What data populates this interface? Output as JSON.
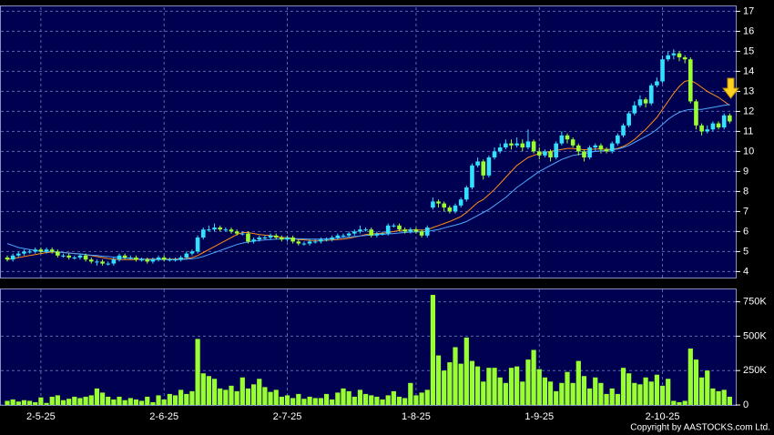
{
  "chart_data": [
    {
      "type": "candlestick",
      "x": [
        null,
        null,
        null,
        null,
        null,
        null,
        "2-5-25",
        null,
        null,
        null,
        null,
        null,
        null,
        null,
        null,
        null,
        null,
        null,
        null,
        null,
        null,
        null,
        null,
        null,
        null,
        null,
        null,
        null,
        "2-6-25",
        null,
        null,
        null,
        null,
        null,
        null,
        null,
        null,
        null,
        null,
        null,
        null,
        null,
        null,
        null,
        null,
        null,
        null,
        null,
        null,
        null,
        "2-7-25",
        null,
        null,
        null,
        null,
        null,
        null,
        null,
        null,
        null,
        null,
        null,
        null,
        null,
        null,
        null,
        null,
        null,
        null,
        null,
        null,
        null,
        null,
        "1-8-25",
        null,
        null,
        null,
        null,
        null,
        null,
        null,
        null,
        null,
        null,
        null,
        null,
        null,
        null,
        null,
        null,
        null,
        null,
        null,
        null,
        null,
        "1-9-25",
        null,
        null,
        null,
        null,
        null,
        null,
        null,
        null,
        null,
        null,
        null,
        null,
        null,
        null,
        null,
        null,
        null,
        null,
        null,
        null,
        null,
        "2-10-25",
        null,
        null,
        null,
        null,
        null,
        null,
        null,
        null,
        null,
        null,
        null,
        null
      ],
      "open": [
        4.7,
        4.6,
        4.8,
        4.9,
        5.0,
        5.0,
        5.1,
        5.0,
        5.1,
        5.0,
        4.8,
        4.8,
        4.7,
        4.7,
        4.8,
        4.6,
        4.5,
        4.5,
        4.4,
        4.4,
        4.6,
        4.8,
        4.7,
        4.7,
        4.6,
        4.6,
        4.5,
        4.6,
        4.7,
        4.6,
        4.6,
        4.6,
        4.7,
        4.9,
        5.0,
        5.7,
        6.1,
        6.1,
        6.2,
        6.1,
        6.1,
        6.0,
        5.9,
        5.9,
        5.5,
        5.6,
        5.7,
        5.7,
        5.8,
        5.7,
        5.6,
        5.7,
        5.5,
        5.4,
        5.4,
        5.5,
        5.5,
        5.6,
        5.6,
        5.7,
        5.8,
        5.8,
        5.9,
        6.0,
        6.1,
        6.1,
        5.8,
        5.9,
        5.9,
        6.3,
        6.3,
        6.1,
        6.0,
        6.1,
        6.0,
        5.8,
        7.2,
        7.5,
        7.4,
        7.2,
        7.0,
        7.3,
        7.6,
        8.2,
        9.3,
        9.5,
        8.8,
        9.7,
        10.0,
        10.2,
        10.4,
        10.3,
        10.4,
        10.2,
        10.5,
        10.0,
        9.8,
        10.0,
        9.7,
        10.4,
        10.8,
        10.6,
        10.3,
        10.0,
        9.7,
        10.2,
        10.3,
        10.1,
        10.0,
        10.4,
        10.8,
        11.3,
        11.9,
        12.3,
        12.6,
        12.4,
        13.3,
        13.5,
        14.6,
        14.8,
        14.9,
        14.7,
        14.6,
        12.5,
        11.3,
        11.0,
        11.1,
        11.4,
        11.2,
        11.8
      ],
      "high": [
        4.8,
        4.9,
        5.0,
        5.1,
        5.1,
        5.2,
        5.2,
        5.2,
        5.2,
        5.1,
        4.9,
        4.9,
        4.8,
        4.9,
        4.9,
        4.7,
        4.6,
        4.6,
        4.5,
        4.7,
        4.9,
        4.9,
        4.8,
        4.8,
        4.7,
        4.7,
        4.7,
        4.8,
        4.8,
        4.7,
        4.7,
        4.8,
        5.0,
        5.1,
        5.8,
        6.2,
        6.3,
        6.4,
        6.3,
        6.2,
        6.2,
        6.1,
        6.0,
        6.0,
        5.7,
        5.8,
        5.8,
        5.9,
        5.9,
        5.8,
        5.8,
        5.8,
        5.6,
        5.5,
        5.6,
        5.6,
        5.7,
        5.7,
        5.8,
        5.9,
        5.9,
        6.0,
        6.1,
        6.3,
        6.2,
        6.2,
        6.0,
        6.0,
        6.4,
        6.4,
        6.4,
        6.2,
        6.2,
        6.2,
        6.1,
        6.3,
        7.7,
        7.6,
        7.5,
        7.3,
        7.4,
        7.7,
        8.3,
        9.4,
        9.7,
        9.6,
        9.8,
        10.2,
        10.4,
        10.6,
        10.6,
        10.7,
        10.6,
        11.1,
        10.6,
        10.2,
        10.1,
        10.1,
        10.5,
        11.0,
        10.9,
        10.7,
        10.4,
        10.1,
        10.3,
        10.4,
        10.4,
        10.2,
        10.5,
        10.9,
        11.4,
        12.0,
        12.5,
        12.8,
        12.7,
        13.4,
        13.7,
        14.8,
        15.0,
        15.1,
        15.0,
        14.8,
        14.7,
        12.6,
        11.4,
        11.3,
        11.5,
        11.5,
        11.9,
        11.9
      ],
      "low": [
        4.5,
        4.5,
        4.7,
        4.8,
        4.9,
        4.9,
        4.9,
        4.9,
        4.9,
        4.7,
        4.7,
        4.6,
        4.6,
        4.6,
        4.5,
        4.4,
        4.3,
        4.3,
        4.3,
        4.3,
        4.5,
        4.6,
        4.6,
        4.5,
        4.5,
        4.4,
        4.4,
        4.5,
        4.5,
        4.5,
        4.5,
        4.5,
        4.6,
        4.8,
        4.9,
        5.6,
        6.0,
        6.0,
        6.0,
        6.0,
        5.9,
        5.8,
        5.8,
        5.4,
        5.4,
        5.5,
        5.6,
        5.6,
        5.6,
        5.5,
        5.5,
        5.4,
        5.3,
        5.3,
        5.3,
        5.4,
        5.4,
        5.5,
        5.5,
        5.6,
        5.7,
        5.7,
        5.8,
        5.9,
        6.0,
        5.7,
        5.7,
        5.8,
        5.8,
        6.2,
        6.0,
        5.9,
        5.9,
        5.9,
        5.7,
        5.7,
        7.1,
        7.2,
        7.0,
        6.9,
        6.9,
        7.2,
        7.5,
        8.1,
        9.2,
        8.6,
        8.7,
        9.6,
        9.9,
        10.1,
        10.1,
        10.2,
        10.0,
        10.1,
        9.9,
        9.6,
        9.7,
        9.5,
        9.6,
        10.3,
        10.4,
        10.2,
        9.8,
        9.5,
        9.6,
        10.0,
        9.9,
        9.9,
        9.9,
        10.3,
        10.7,
        11.2,
        11.8,
        12.2,
        12.2,
        12.3,
        13.2,
        13.4,
        14.5,
        14.6,
        14.5,
        14.4,
        12.4,
        11.1,
        10.8,
        10.9,
        11.0,
        11.1,
        11.1,
        11.4
      ],
      "close": [
        4.6,
        4.8,
        4.9,
        5.0,
        5.0,
        5.1,
        5.0,
        5.1,
        5.0,
        4.8,
        4.8,
        4.7,
        4.7,
        4.8,
        4.6,
        4.5,
        4.5,
        4.4,
        4.4,
        4.6,
        4.8,
        4.7,
        4.7,
        4.6,
        4.6,
        4.5,
        4.6,
        4.7,
        4.6,
        4.6,
        4.6,
        4.7,
        4.9,
        5.0,
        5.7,
        6.1,
        6.1,
        6.2,
        6.1,
        6.1,
        6.0,
        5.9,
        5.9,
        5.5,
        5.6,
        5.7,
        5.7,
        5.8,
        5.7,
        5.6,
        5.7,
        5.5,
        5.4,
        5.4,
        5.5,
        5.5,
        5.6,
        5.6,
        5.7,
        5.8,
        5.8,
        5.9,
        6.0,
        6.1,
        6.1,
        5.8,
        5.9,
        5.9,
        6.3,
        6.3,
        6.1,
        6.0,
        6.1,
        6.0,
        5.8,
        6.2,
        7.5,
        7.4,
        7.2,
        7.0,
        7.3,
        7.6,
        8.2,
        9.3,
        9.5,
        8.8,
        9.7,
        10.0,
        10.2,
        10.4,
        10.3,
        10.4,
        10.2,
        10.5,
        10.0,
        9.8,
        10.0,
        9.7,
        10.4,
        10.8,
        10.6,
        10.3,
        10.0,
        9.7,
        10.2,
        10.3,
        10.1,
        10.0,
        10.4,
        10.8,
        11.3,
        11.9,
        12.3,
        12.6,
        12.4,
        13.3,
        13.5,
        14.6,
        14.8,
        14.9,
        14.7,
        14.6,
        12.5,
        11.3,
        11.0,
        11.1,
        11.4,
        11.2,
        11.8,
        11.5
      ],
      "up_color": "#33e0ff",
      "down_color": "#99ff33",
      "overlays": [
        {
          "color": "#ff8c1a",
          "values": [
            4.6,
            4.65,
            4.7,
            4.75,
            4.8,
            4.85,
            4.9,
            4.95,
            4.97,
            4.97,
            4.95,
            4.93,
            4.9,
            4.88,
            4.84,
            4.8,
            4.75,
            4.7,
            4.65,
            4.62,
            4.6,
            4.6,
            4.6,
            4.6,
            4.62,
            4.62,
            4.62,
            4.62,
            4.62,
            4.62,
            4.62,
            4.63,
            4.65,
            4.7,
            4.8,
            4.95,
            5.1,
            5.25,
            5.4,
            5.55,
            5.7,
            5.85,
            5.95,
            5.95,
            5.9,
            5.85,
            5.82,
            5.8,
            5.75,
            5.7,
            5.7,
            5.65,
            5.6,
            5.58,
            5.56,
            5.55,
            5.55,
            5.56,
            5.58,
            5.6,
            5.62,
            5.66,
            5.72,
            5.78,
            5.85,
            5.88,
            5.9,
            5.92,
            5.95,
            6.0,
            6.05,
            6.07,
            6.08,
            6.08,
            6.07,
            6.08,
            6.2,
            6.3,
            6.4,
            6.5,
            6.62,
            6.75,
            6.95,
            7.2,
            7.45,
            7.6,
            7.85,
            8.1,
            8.4,
            8.7,
            9.0,
            9.3,
            9.5,
            9.7,
            9.8,
            9.9,
            9.95,
            10.0,
            10.05,
            10.1,
            10.15,
            10.15,
            10.12,
            10.08,
            10.1,
            10.12,
            10.12,
            10.1,
            10.12,
            10.15,
            10.25,
            10.4,
            10.6,
            10.85,
            11.1,
            11.4,
            11.7,
            12.1,
            12.5,
            12.9,
            13.25,
            13.5,
            13.55,
            13.4,
            13.2,
            13.0,
            12.85,
            12.7,
            12.5,
            12.3
          ]
        },
        {
          "color": "#4da6ff",
          "values": [
            5.4,
            5.3,
            5.2,
            5.15,
            5.1,
            5.05,
            5.0,
            5.0,
            5.0,
            4.98,
            4.95,
            4.92,
            4.9,
            4.88,
            4.85,
            4.82,
            4.8,
            4.77,
            4.75,
            4.72,
            4.7,
            4.68,
            4.66,
            4.64,
            4.62,
            4.6,
            4.6,
            4.6,
            4.6,
            4.6,
            4.6,
            4.6,
            4.62,
            4.64,
            4.68,
            4.75,
            4.85,
            4.95,
            5.05,
            5.15,
            5.25,
            5.35,
            5.42,
            5.48,
            5.52,
            5.55,
            5.58,
            5.6,
            5.62,
            5.63,
            5.64,
            5.64,
            5.64,
            5.63,
            5.62,
            5.62,
            5.62,
            5.63,
            5.65,
            5.67,
            5.7,
            5.72,
            5.75,
            5.78,
            5.8,
            5.82,
            5.84,
            5.86,
            5.88,
            5.9,
            5.93,
            5.95,
            5.97,
            5.98,
            5.99,
            6.0,
            6.05,
            6.1,
            6.18,
            6.25,
            6.32,
            6.4,
            6.5,
            6.65,
            6.8,
            6.95,
            7.1,
            7.3,
            7.5,
            7.7,
            7.95,
            8.2,
            8.4,
            8.6,
            8.8,
            9.0,
            9.15,
            9.3,
            9.45,
            9.6,
            9.7,
            9.8,
            9.85,
            9.9,
            9.95,
            10.0,
            10.03,
            10.05,
            10.08,
            10.12,
            10.2,
            10.3,
            10.45,
            10.6,
            10.75,
            10.9,
            11.1,
            11.35,
            11.6,
            11.8,
            11.95,
            12.05,
            12.1,
            12.1,
            12.1,
            12.15,
            12.2,
            12.25,
            12.3,
            12.35
          ]
        }
      ],
      "ylim": [
        3.7,
        17.2
      ],
      "yticks": [
        4,
        5,
        6,
        7,
        8,
        9,
        10,
        11,
        12,
        13,
        14,
        15,
        16,
        17
      ],
      "grid": true
    },
    {
      "type": "bar",
      "values": [
        30000,
        40000,
        25000,
        35000,
        30000,
        20000,
        55000,
        15000,
        60000,
        70000,
        35000,
        45000,
        60000,
        50000,
        60000,
        70000,
        120000,
        90000,
        60000,
        40000,
        60000,
        35000,
        50000,
        40000,
        30000,
        60000,
        20000,
        70000,
        40000,
        80000,
        70000,
        110000,
        80000,
        100000,
        480000,
        230000,
        210000,
        190000,
        120000,
        110000,
        140000,
        100000,
        200000,
        120000,
        150000,
        190000,
        130000,
        95000,
        110000,
        60000,
        70000,
        50000,
        80000,
        45000,
        60000,
        50000,
        50000,
        80000,
        40000,
        90000,
        120000,
        100000,
        60000,
        110000,
        80000,
        70000,
        60000,
        40000,
        70000,
        100000,
        60000,
        50000,
        160000,
        70000,
        90000,
        110000,
        800000,
        360000,
        250000,
        310000,
        420000,
        300000,
        490000,
        320000,
        280000,
        170000,
        270000,
        270000,
        200000,
        160000,
        270000,
        280000,
        170000,
        330000,
        400000,
        260000,
        200000,
        170000,
        100000,
        160000,
        240000,
        160000,
        320000,
        210000,
        120000,
        200000,
        160000,
        80000,
        120000,
        80000,
        270000,
        230000,
        160000,
        150000,
        200000,
        170000,
        220000,
        140000,
        190000,
        30000,
        20000,
        30000,
        410000,
        330000,
        200000,
        250000,
        120000,
        100000,
        110000,
        60000
      ],
      "color": "#99ff33",
      "ylim": [
        0,
        840000
      ],
      "yticks": [
        0,
        {
          "value": 250000,
          "label": "250K"
        },
        {
          "value": 500000,
          "label": "500K"
        },
        {
          "value": 750000,
          "label": "750K"
        }
      ],
      "grid": true
    }
  ],
  "footer": "Copyright by AASTOCKS.com Ltd."
}
